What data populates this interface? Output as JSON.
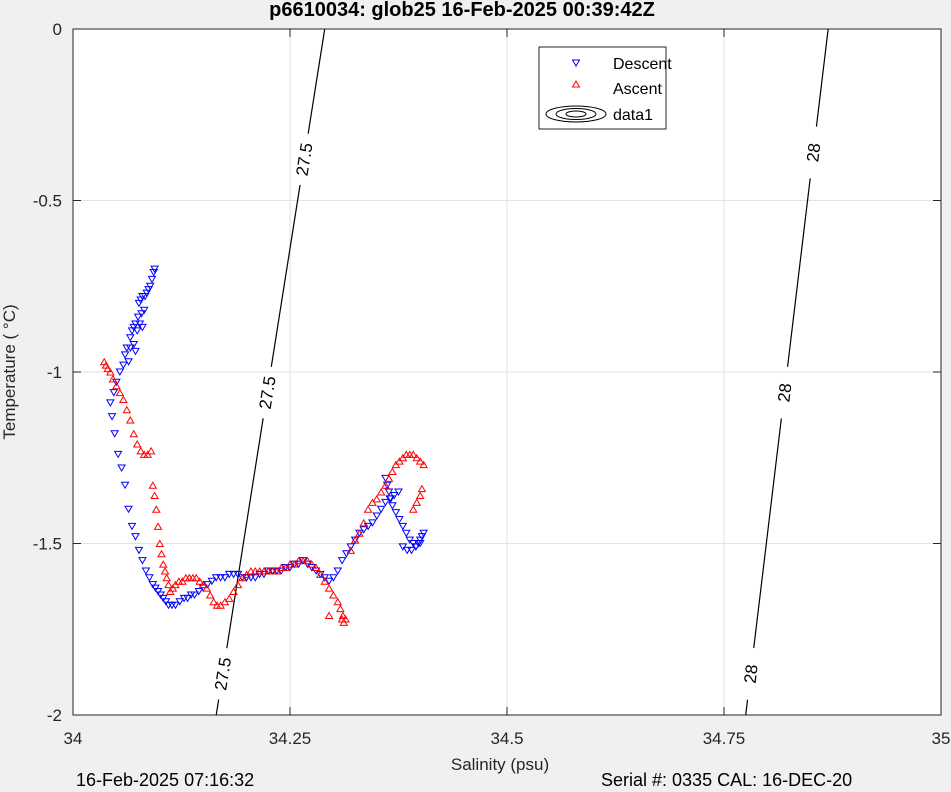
{
  "chart_data": {
    "type": "scatter",
    "title": "p6610034: glob25 16-Feb-2025 00:39:42Z",
    "xlabel": "Salinity (psu)",
    "ylabel": "Temperature (   °C)",
    "xlim": [
      34,
      35
    ],
    "ylim": [
      -2,
      0
    ],
    "xticks": [
      34,
      34.25,
      34.5,
      34.75,
      35
    ],
    "xtick_labels": [
      "34",
      "34.25",
      "34.5",
      "34.75",
      "35"
    ],
    "yticks": [
      0,
      -0.5,
      -1,
      -1.5,
      -2
    ],
    "ytick_labels": [
      "0",
      "-0.5",
      "-1",
      "-1.5",
      "-2"
    ],
    "grid": true,
    "legend_position": "top-right",
    "series": [
      {
        "name": "Descent",
        "marker": "triangle-down",
        "color": "#0000ff",
        "x": [
          34.094,
          34.093,
          34.091,
          34.089,
          34.087,
          34.085,
          34.083,
          34.08,
          34.078,
          34.076,
          34.082,
          34.079,
          34.075,
          34.072,
          34.07,
          34.068,
          34.066,
          34.07,
          34.074,
          34.077,
          34.08,
          34.072,
          34.066,
          34.062,
          34.06,
          34.064,
          34.058,
          34.054,
          34.05,
          34.047,
          34.043,
          34.045,
          34.048,
          34.052,
          34.056,
          34.06,
          34.064,
          34.068,
          34.072,
          34.076,
          34.08,
          34.084,
          34.088,
          34.092,
          34.095,
          34.098,
          34.101,
          34.104,
          34.107,
          34.11,
          34.114,
          34.118,
          34.123,
          34.128,
          34.132,
          34.136,
          34.14,
          34.145,
          34.15,
          34.155,
          34.16,
          34.165,
          34.17,
          34.175,
          34.18,
          34.185,
          34.19,
          34.195,
          34.2,
          34.205,
          34.21,
          34.215,
          34.22,
          34.225,
          34.23,
          34.235,
          34.24,
          34.245,
          34.25,
          34.255,
          34.26,
          34.265,
          34.27,
          34.275,
          34.28,
          34.285,
          34.29,
          34.295,
          34.3,
          34.305,
          34.31,
          34.315,
          34.32,
          34.325,
          34.33,
          34.335,
          34.34,
          34.345,
          34.35,
          34.355,
          34.36,
          34.365,
          34.37,
          34.375,
          34.36,
          34.362,
          34.364,
          34.366,
          34.368,
          34.372,
          34.376,
          34.38,
          34.384,
          34.388,
          34.392,
          34.395,
          34.398,
          34.4,
          34.402,
          34.404,
          34.38,
          34.385,
          34.39,
          34.395,
          34.4
        ],
        "y": [
          -0.7,
          -0.71,
          -0.73,
          -0.75,
          -0.76,
          -0.77,
          -0.78,
          -0.78,
          -0.79,
          -0.8,
          -0.82,
          -0.83,
          -0.84,
          -0.86,
          -0.87,
          -0.88,
          -0.9,
          -0.92,
          -0.88,
          -0.86,
          -0.87,
          -0.94,
          -0.93,
          -0.93,
          -0.95,
          -0.97,
          -0.98,
          -1.0,
          -1.03,
          -1.06,
          -1.09,
          -1.13,
          -1.18,
          -1.24,
          -1.28,
          -1.33,
          -1.4,
          -1.45,
          -1.48,
          -1.52,
          -1.55,
          -1.58,
          -1.6,
          -1.62,
          -1.63,
          -1.64,
          -1.65,
          -1.66,
          -1.67,
          -1.68,
          -1.68,
          -1.68,
          -1.67,
          -1.66,
          -1.66,
          -1.65,
          -1.65,
          -1.64,
          -1.63,
          -1.62,
          -1.61,
          -1.6,
          -1.6,
          -1.6,
          -1.59,
          -1.59,
          -1.59,
          -1.6,
          -1.6,
          -1.6,
          -1.6,
          -1.59,
          -1.59,
          -1.58,
          -1.58,
          -1.58,
          -1.58,
          -1.57,
          -1.57,
          -1.56,
          -1.56,
          -1.55,
          -1.56,
          -1.57,
          -1.58,
          -1.59,
          -1.6,
          -1.61,
          -1.6,
          -1.58,
          -1.55,
          -1.53,
          -1.51,
          -1.49,
          -1.47,
          -1.46,
          -1.45,
          -1.44,
          -1.42,
          -1.4,
          -1.38,
          -1.37,
          -1.36,
          -1.35,
          -1.31,
          -1.33,
          -1.35,
          -1.37,
          -1.39,
          -1.41,
          -1.43,
          -1.45,
          -1.47,
          -1.49,
          -1.5,
          -1.51,
          -1.5,
          -1.49,
          -1.48,
          -1.47,
          -1.51,
          -1.52,
          -1.52,
          -1.51,
          -1.5
        ]
      },
      {
        "name": "Ascent",
        "marker": "triangle-up",
        "color": "#ff0000",
        "x": [
          34.036,
          34.038,
          34.04,
          34.043,
          34.046,
          34.05,
          34.054,
          34.058,
          34.062,
          34.066,
          34.07,
          34.074,
          34.078,
          34.082,
          34.086,
          34.09,
          34.092,
          34.094,
          34.096,
          34.098,
          34.1,
          34.102,
          34.104,
          34.106,
          34.108,
          34.11,
          34.112,
          34.115,
          34.118,
          34.122,
          34.126,
          34.13,
          34.134,
          34.138,
          34.142,
          34.146,
          34.15,
          34.154,
          34.158,
          34.162,
          34.166,
          34.17,
          34.175,
          34.18,
          34.185,
          34.19,
          34.195,
          34.2,
          34.205,
          34.21,
          34.215,
          34.22,
          34.225,
          34.23,
          34.235,
          34.24,
          34.245,
          34.25,
          34.255,
          34.26,
          34.265,
          34.27,
          34.275,
          34.28,
          34.285,
          34.29,
          34.295,
          34.3,
          34.305,
          34.308,
          34.311,
          34.314,
          34.31,
          34.312,
          34.295,
          34.32,
          34.325,
          34.33,
          34.335,
          34.34,
          34.345,
          34.35,
          34.355,
          34.36,
          34.364,
          34.368,
          34.372,
          34.376,
          34.38,
          34.384,
          34.388,
          34.392,
          34.396,
          34.4,
          34.404,
          34.392,
          34.396,
          34.4,
          34.402
        ],
        "y": [
          -0.97,
          -0.98,
          -0.99,
          -1.0,
          -1.02,
          -1.04,
          -1.06,
          -1.08,
          -1.11,
          -1.14,
          -1.18,
          -1.21,
          -1.23,
          -1.24,
          -1.24,
          -1.23,
          -1.33,
          -1.36,
          -1.4,
          -1.45,
          -1.5,
          -1.53,
          -1.56,
          -1.58,
          -1.6,
          -1.62,
          -1.64,
          -1.63,
          -1.62,
          -1.61,
          -1.61,
          -1.6,
          -1.6,
          -1.6,
          -1.6,
          -1.61,
          -1.62,
          -1.63,
          -1.65,
          -1.67,
          -1.68,
          -1.68,
          -1.67,
          -1.66,
          -1.64,
          -1.62,
          -1.6,
          -1.59,
          -1.58,
          -1.58,
          -1.58,
          -1.58,
          -1.58,
          -1.58,
          -1.58,
          -1.57,
          -1.57,
          -1.56,
          -1.56,
          -1.55,
          -1.55,
          -1.55,
          -1.56,
          -1.57,
          -1.59,
          -1.61,
          -1.63,
          -1.65,
          -1.67,
          -1.69,
          -1.71,
          -1.72,
          -1.72,
          -1.73,
          -1.71,
          -1.52,
          -1.49,
          -1.47,
          -1.44,
          -1.4,
          -1.38,
          -1.37,
          -1.35,
          -1.33,
          -1.31,
          -1.29,
          -1.27,
          -1.26,
          -1.25,
          -1.24,
          -1.24,
          -1.24,
          -1.25,
          -1.26,
          -1.27,
          -1.4,
          -1.38,
          -1.36,
          -1.34
        ]
      }
    ],
    "contours": [
      {
        "label": "27.5",
        "x": [
          34.165,
          34.29
        ],
        "y": [
          -2,
          0
        ],
        "labels_at_y": [
          -1.88,
          -1.06,
          -0.38
        ]
      },
      {
        "label": "28",
        "x": [
          34.775,
          34.87
        ],
        "y": [
          -2,
          0
        ],
        "labels_at_y": [
          -1.88,
          -1.06,
          -0.36
        ]
      }
    ],
    "legend": {
      "entries": [
        "Descent",
        "Ascent",
        "data1"
      ]
    }
  },
  "footer": {
    "left": "16-Feb-2025 07:16:32",
    "right": "Serial #: 0335  CAL: 16-DEC-20"
  }
}
